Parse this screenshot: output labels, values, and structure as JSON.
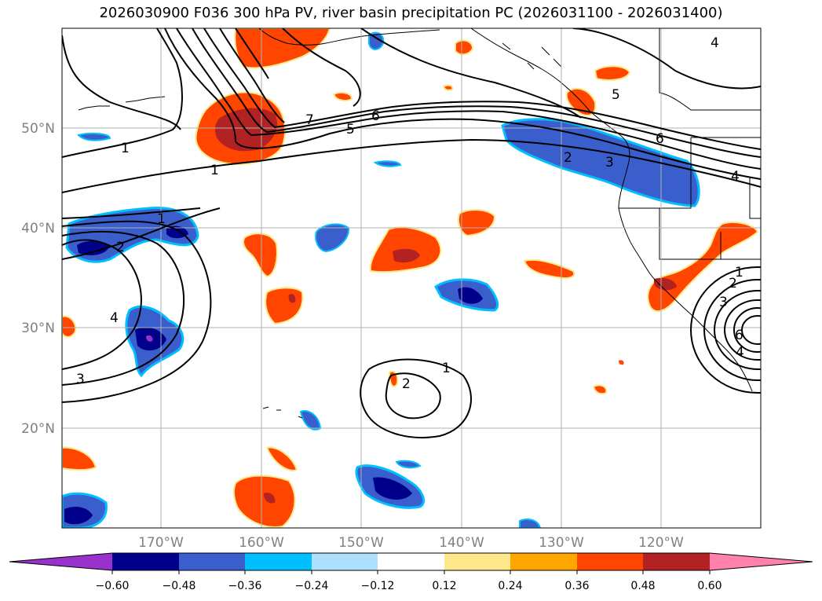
{
  "title": "2026030900 F036 300 hPa PV, river basin precipitation PC (2026031100 - 2026031400)",
  "map": {
    "lat_labels": [
      "50°N",
      "40°N",
      "30°N",
      "20°N"
    ],
    "lon_labels": [
      "170°W",
      "160°W",
      "150°W",
      "140°W",
      "130°W",
      "120°W"
    ],
    "pv_contour_labels": [
      "1",
      "1",
      "1",
      "2",
      "4",
      "3",
      "7",
      "5",
      "6",
      "2",
      "3",
      "5",
      "6",
      "4",
      "4",
      "1",
      "2",
      "1",
      "2",
      "3",
      "4",
      "6"
    ]
  },
  "colorbar": {
    "ticks": [
      "−0.60",
      "−0.48",
      "−0.36",
      "−0.24",
      "−0.12",
      "0.12",
      "0.24",
      "0.36",
      "0.48",
      "0.60"
    ],
    "colors": [
      "#9932CC",
      "#00008B",
      "#3A5FCD",
      "#00BFFF",
      "#ADDFFF",
      "#FFFFFF",
      "#FFE88A",
      "#FFA500",
      "#FF4500",
      "#B22222",
      "#FF82AB"
    ]
  }
}
